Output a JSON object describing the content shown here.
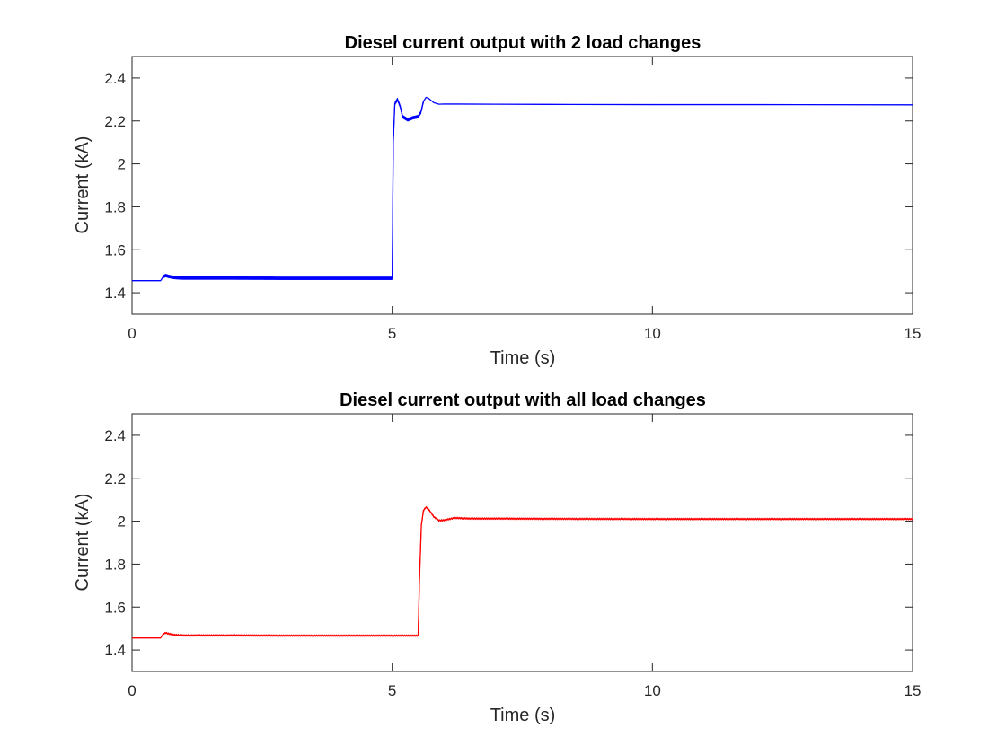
{
  "chart_data": [
    {
      "type": "line",
      "title": "Diesel current output with 2 load changes",
      "xlabel": "Time (s)",
      "ylabel": "Current (kA)",
      "xlim": [
        0,
        15
      ],
      "ylim": [
        1.3,
        2.5
      ],
      "xticks": [
        0,
        5,
        10,
        15
      ],
      "xtick_labels": [
        "0",
        "5",
        "10",
        "15"
      ],
      "yticks": [
        1.4,
        1.6,
        1.8,
        2.0,
        2.2,
        2.4
      ],
      "ytick_labels": [
        "1.4",
        "1.6",
        "1.8",
        "2",
        "2.2",
        "2.4"
      ],
      "grid": false,
      "series": [
        {
          "color": "#0000ff",
          "x": [
            0,
            0.55,
            0.6,
            0.65,
            0.7,
            0.8,
            0.9,
            1.0,
            1.5,
            2.0,
            3.0,
            4.0,
            4.5,
            5.0,
            5.02,
            5.05,
            5.1,
            5.15,
            5.2,
            5.3,
            5.4,
            5.5,
            5.55,
            5.6,
            5.65,
            5.7,
            5.8,
            5.9,
            6.0,
            7.0,
            8.0,
            10.0,
            12.0,
            15.0
          ],
          "y": [
            1.456,
            1.456,
            1.475,
            1.48,
            1.476,
            1.471,
            1.469,
            1.468,
            1.468,
            1.468,
            1.467,
            1.467,
            1.467,
            1.467,
            2.1,
            2.28,
            2.3,
            2.27,
            2.22,
            2.205,
            2.215,
            2.22,
            2.24,
            2.29,
            2.31,
            2.305,
            2.285,
            2.278,
            2.279,
            2.278,
            2.277,
            2.276,
            2.276,
            2.275
          ],
          "band_start": 0.6,
          "band_end": 5.6,
          "band_amplitude": 0.006
        }
      ]
    },
    {
      "type": "line",
      "title": "Diesel current output with all load changes",
      "xlabel": "Time (s)",
      "ylabel": "Current (kA)",
      "xlim": [
        0,
        15
      ],
      "ylim": [
        1.3,
        2.5
      ],
      "xticks": [
        0,
        5,
        10,
        15
      ],
      "xtick_labels": [
        "0",
        "5",
        "10",
        "15"
      ],
      "yticks": [
        1.4,
        1.6,
        1.8,
        2.0,
        2.2,
        2.4
      ],
      "ytick_labels": [
        "1.4",
        "1.6",
        "1.8",
        "2",
        "2.2",
        "2.4"
      ],
      "grid": false,
      "series": [
        {
          "color": "#ff0000",
          "x": [
            0,
            0.55,
            0.6,
            0.65,
            0.7,
            0.8,
            0.9,
            1.0,
            2.0,
            3.0,
            4.0,
            5.0,
            5.5,
            5.52,
            5.56,
            5.6,
            5.65,
            5.7,
            5.8,
            5.9,
            6.0,
            6.2,
            6.5,
            7.0,
            8.0,
            10.0,
            12.0,
            15.0
          ],
          "y": [
            1.456,
            1.456,
            1.475,
            1.48,
            1.476,
            1.471,
            1.469,
            1.468,
            1.468,
            1.467,
            1.467,
            1.467,
            1.467,
            1.7,
            1.98,
            2.05,
            2.065,
            2.055,
            2.02,
            2.003,
            2.005,
            2.015,
            2.012,
            2.012,
            2.011,
            2.01,
            2.01,
            2.01
          ],
          "band_start": 0.6,
          "band_end": 15.0,
          "band_amplitude": 0.004
        }
      ]
    }
  ]
}
